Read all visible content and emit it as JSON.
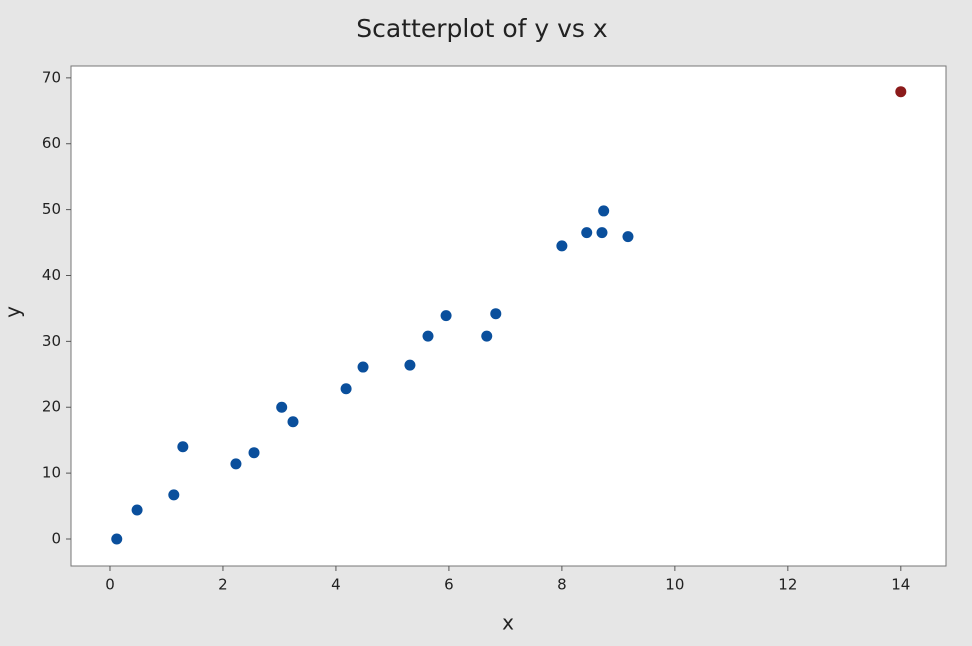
{
  "chart_data": {
    "type": "scatter",
    "title": "Scatterplot of y vs x",
    "x_label": "x",
    "y_label": "y",
    "series": [
      {
        "color": "#0a4f9c",
        "x": [
          0.12,
          0.48,
          1.13,
          1.29,
          2.23,
          2.55,
          3.04,
          3.24,
          4.18,
          4.48,
          5.31,
          5.63,
          5.95,
          6.67,
          6.83,
          8.0,
          8.44,
          8.71,
          8.74,
          9.17
        ],
        "values": [
          0,
          4.4,
          6.7,
          14.0,
          11.4,
          13.1,
          20.0,
          17.8,
          22.8,
          26.1,
          26.4,
          30.8,
          33.9,
          30.8,
          34.2,
          44.5,
          46.5,
          46.5,
          49.8,
          45.9
        ]
      },
      {
        "color": "#8b1a1a",
        "x": [
          14.0
        ],
        "values": [
          67.9
        ]
      }
    ],
    "xlim": [
      -0.69,
      14.8
    ],
    "xticks": [
      0,
      2,
      4,
      6,
      8,
      10,
      12,
      14
    ],
    "ylim": [
      -4.1,
      71.8
    ],
    "yticks": [
      0,
      10,
      20,
      30,
      40,
      50,
      60,
      70
    ]
  }
}
